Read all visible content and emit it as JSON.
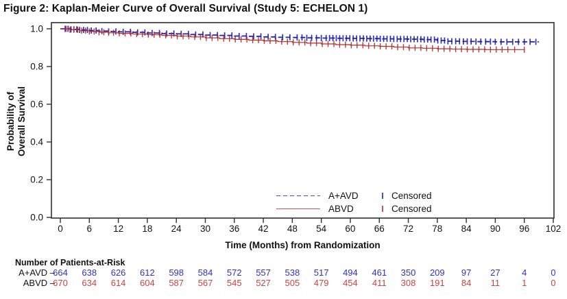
{
  "figure_title": "Figure 2: Kaplan-Meier Curve of Overall Survival (Study 5: ECHELON 1)",
  "chart_data": {
    "type": "line",
    "subtype": "kaplan-meier-step",
    "title": "Figure 2: Kaplan-Meier Curve of Overall Survival (Study 5: ECHELON 1)",
    "xlabel": "Time (Months) from Randomization",
    "ylabel": "Probability of\nOverall Survival",
    "xlim": [
      0,
      102
    ],
    "ylim": [
      0.0,
      1.0
    ],
    "grid": false,
    "legend_position": "inside-bottom-center",
    "xticks": [
      0,
      6,
      12,
      18,
      24,
      30,
      36,
      42,
      48,
      54,
      60,
      66,
      72,
      78,
      84,
      90,
      96,
      102
    ],
    "yticks": [
      {
        "value": 1.0,
        "label": "1.0"
      },
      {
        "value": 0.8,
        "label": "0.8"
      },
      {
        "value": 0.6,
        "label": "0.6"
      },
      {
        "value": 0.4,
        "label": "0.4"
      },
      {
        "value": 0.2,
        "label": "0.2"
      },
      {
        "value": 0.0,
        "label": "0.0"
      }
    ],
    "series": [
      {
        "name": "A+AVD",
        "color": "#2020aa",
        "style": "dashed",
        "points": [
          [
            0,
            1.0
          ],
          [
            2,
            0.997
          ],
          [
            4,
            0.994
          ],
          [
            6,
            0.991
          ],
          [
            8,
            0.988
          ],
          [
            10,
            0.986
          ],
          [
            12,
            0.984
          ],
          [
            15,
            0.981
          ],
          [
            18,
            0.978
          ],
          [
            21,
            0.975
          ],
          [
            24,
            0.973
          ],
          [
            27,
            0.97
          ],
          [
            30,
            0.967
          ],
          [
            33,
            0.965
          ],
          [
            36,
            0.962
          ],
          [
            39,
            0.96
          ],
          [
            42,
            0.957
          ],
          [
            45,
            0.955
          ],
          [
            48,
            0.954
          ],
          [
            51,
            0.952
          ],
          [
            54,
            0.951
          ],
          [
            57,
            0.95
          ],
          [
            60,
            0.949
          ],
          [
            63,
            0.948
          ],
          [
            66,
            0.947
          ],
          [
            69,
            0.946
          ],
          [
            72,
            0.945
          ],
          [
            75,
            0.943
          ],
          [
            78,
            0.938
          ],
          [
            80,
            0.934
          ],
          [
            83,
            0.933
          ],
          [
            86,
            0.932
          ],
          [
            90,
            0.931
          ],
          [
            99,
            0.931
          ]
        ],
        "censor_months": [
          1,
          1.6,
          2.2,
          2.8,
          3.4,
          4,
          4.8,
          5.6,
          6.4,
          7.4,
          8.6,
          10,
          11.5,
          13,
          14.5,
          16,
          17.5,
          19,
          20.5,
          22,
          23.5,
          25,
          26.5,
          28,
          29.5,
          31,
          32.5,
          34,
          35.5,
          37,
          38.5,
          40,
          41.5,
          43,
          44.5,
          46,
          47.5,
          49,
          50,
          51,
          52,
          53,
          54,
          55,
          55.7,
          56.4,
          57.1,
          57.8,
          58.5,
          59.2,
          59.9,
          60.6,
          61.3,
          62,
          62.7,
          63.4,
          64.1,
          64.8,
          65.5,
          66.2,
          66.9,
          67.6,
          68.3,
          69,
          69.7,
          70.4,
          71.1,
          71.8,
          72.5,
          73.2,
          73.9,
          74.6,
          75.3,
          76,
          76.7,
          77.4,
          78.1,
          78.8,
          79.5,
          80.2,
          81,
          81.8,
          82.6,
          83.4,
          84.2,
          85,
          86,
          87,
          88,
          89,
          90,
          91.2,
          92.4,
          93.6,
          94.8,
          96,
          97.2,
          98.4
        ]
      },
      {
        "name": "ABVD",
        "color": "#b02a2a",
        "style": "solid",
        "points": [
          [
            0,
            1.0
          ],
          [
            2,
            0.995
          ],
          [
            4,
            0.99
          ],
          [
            6,
            0.986
          ],
          [
            8,
            0.982
          ],
          [
            10,
            0.979
          ],
          [
            12,
            0.976
          ],
          [
            15,
            0.972
          ],
          [
            18,
            0.969
          ],
          [
            21,
            0.965
          ],
          [
            24,
            0.961
          ],
          [
            27,
            0.957
          ],
          [
            30,
            0.952
          ],
          [
            33,
            0.948
          ],
          [
            36,
            0.944
          ],
          [
            39,
            0.94
          ],
          [
            42,
            0.936
          ],
          [
            45,
            0.932
          ],
          [
            48,
            0.928
          ],
          [
            51,
            0.924
          ],
          [
            54,
            0.92
          ],
          [
            57,
            0.916
          ],
          [
            60,
            0.913
          ],
          [
            63,
            0.91
          ],
          [
            66,
            0.907
          ],
          [
            69,
            0.903
          ],
          [
            72,
            0.899
          ],
          [
            75,
            0.897
          ],
          [
            78,
            0.894
          ],
          [
            81,
            0.892
          ],
          [
            84,
            0.891
          ],
          [
            88,
            0.89
          ],
          [
            96,
            0.889
          ]
        ],
        "censor_months": [
          1.2,
          2,
          2.8,
          3.6,
          4.4,
          5.2,
          6,
          7,
          8,
          9,
          10,
          11,
          12.2,
          13.4,
          14.6,
          15.8,
          17,
          18.2,
          19.4,
          20.6,
          21.8,
          23,
          24.2,
          25.4,
          26.6,
          27.8,
          29,
          30.2,
          31.4,
          32.6,
          33.8,
          35,
          36.2,
          37.4,
          38.6,
          39.8,
          41,
          42.2,
          43.4,
          44.6,
          45.8,
          47,
          48.2,
          49.4,
          50.6,
          51.8,
          53,
          54.2,
          55.4,
          56.6,
          57.8,
          59,
          60.2,
          61.4,
          62.6,
          63.8,
          65,
          66.2,
          67.4,
          68.6,
          69.8,
          71,
          72.2,
          73.4,
          74.6,
          75.8,
          77,
          78.2,
          79.4,
          80.6,
          81.8,
          83,
          84.2,
          85.4,
          86.6,
          87.8,
          89,
          90.2,
          91.4,
          92.6,
          94,
          96
        ]
      }
    ],
    "legend": {
      "entries": [
        {
          "label": "A+AVD",
          "censored_label": "Censored"
        },
        {
          "label": "ABVD",
          "censored_label": "Censored"
        }
      ]
    },
    "at_risk": {
      "header": "Number of Patients-at-Risk",
      "rows": [
        {
          "label": "A+AVD –",
          "color": "#3030c0",
          "values": [
            664,
            638,
            626,
            612,
            598,
            584,
            572,
            557,
            538,
            517,
            494,
            461,
            350,
            209,
            97,
            27,
            4,
            0
          ]
        },
        {
          "label": "ABVD –",
          "color": "#cc4242",
          "values": [
            670,
            634,
            614,
            604,
            587,
            567,
            545,
            527,
            505,
            479,
            454,
            411,
            308,
            191,
            84,
            11,
            1,
            0
          ]
        }
      ]
    }
  }
}
